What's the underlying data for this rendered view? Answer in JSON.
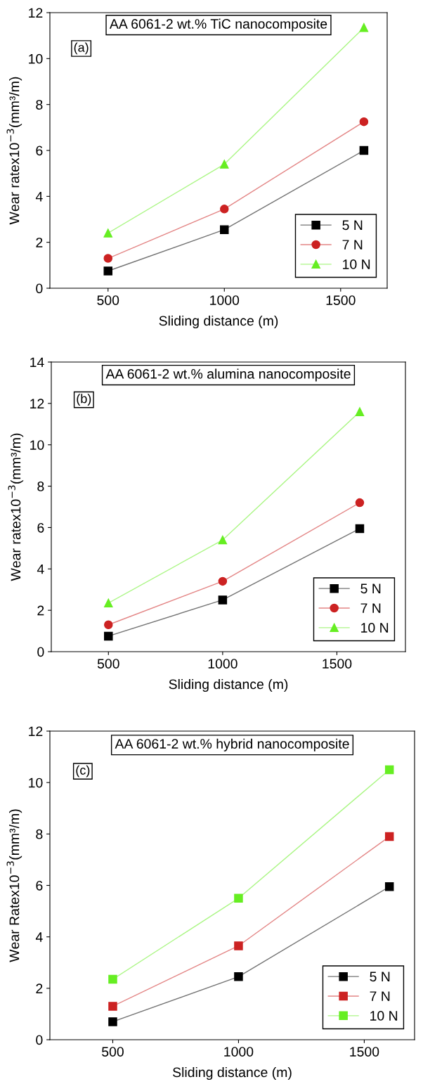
{
  "chart_data": [
    {
      "type": "line",
      "title": "AA 6061-2 wt.% TiC nanocomposite",
      "xlabel": "Sliding distance (m)",
      "ylabel": "Wear ratex10$^{−3}$(mm³/m)",
      "annotations": [
        "(a)"
      ],
      "x": [
        500,
        1000,
        1600
      ],
      "xlim": [
        250,
        1700
      ],
      "xticks": [
        500,
        1000,
        1500
      ],
      "ylim": [
        0,
        12
      ],
      "yticks": [
        0,
        2,
        4,
        6,
        8,
        10,
        12
      ],
      "legend": "bottom right",
      "grid": false,
      "series": [
        {
          "name": "5 N",
          "color": "#000000",
          "marker": "square",
          "values": [
            0.75,
            2.55,
            6.0
          ]
        },
        {
          "name": "7 N",
          "color": "#cc2222",
          "marker": "circle",
          "values": [
            1.3,
            3.45,
            7.25
          ]
        },
        {
          "name": "10 N",
          "color": "#66ee22",
          "marker": "triangle",
          "values": [
            2.4,
            5.4,
            11.35
          ]
        }
      ]
    },
    {
      "type": "line",
      "title": "AA 6061-2 wt.% alumina nanocomposite",
      "xlabel": "Sliding distance (m)",
      "ylabel": "Wear ratex10$^{−3}$(mm³/m)",
      "annotations": [
        "(b)"
      ],
      "x": [
        500,
        1000,
        1600
      ],
      "xlim": [
        250,
        1800
      ],
      "xticks": [
        500,
        1000,
        1500
      ],
      "ylim": [
        0,
        14
      ],
      "yticks": [
        0,
        2,
        4,
        6,
        8,
        10,
        12,
        14
      ],
      "legend": "bottom right",
      "grid": false,
      "series": [
        {
          "name": "5 N",
          "color": "#000000",
          "marker": "square",
          "values": [
            0.75,
            2.5,
            5.95
          ]
        },
        {
          "name": "7 N",
          "color": "#cc2222",
          "marker": "circle",
          "values": [
            1.3,
            3.4,
            7.2
          ]
        },
        {
          "name": "10 N",
          "color": "#66ee22",
          "marker": "triangle",
          "values": [
            2.35,
            5.4,
            11.6
          ]
        }
      ]
    },
    {
      "type": "line",
      "title": "AA 6061-2 wt.% hybrid nanocomposite",
      "xlabel": "Sliding distance (m)",
      "ylabel": "Wear Ratex10$^{−3}$(mm³/m)",
      "annotations": [
        "(c)"
      ],
      "x": [
        500,
        1000,
        1600
      ],
      "xlim": [
        250,
        1700
      ],
      "xticks": [
        500,
        1000,
        1500
      ],
      "ylim": [
        0,
        12
      ],
      "yticks": [
        0,
        2,
        4,
        6,
        8,
        10,
        12
      ],
      "legend": "bottom right",
      "grid": false,
      "series": [
        {
          "name": "5 N",
          "color": "#000000",
          "marker": "square",
          "values": [
            0.7,
            2.45,
            5.95
          ]
        },
        {
          "name": "7 N",
          "color": "#cc2222",
          "marker": "square",
          "values": [
            1.3,
            3.65,
            7.9
          ]
        },
        {
          "name": "10 N",
          "color": "#66ee22",
          "marker": "square",
          "values": [
            2.35,
            5.5,
            10.5
          ]
        }
      ]
    }
  ]
}
